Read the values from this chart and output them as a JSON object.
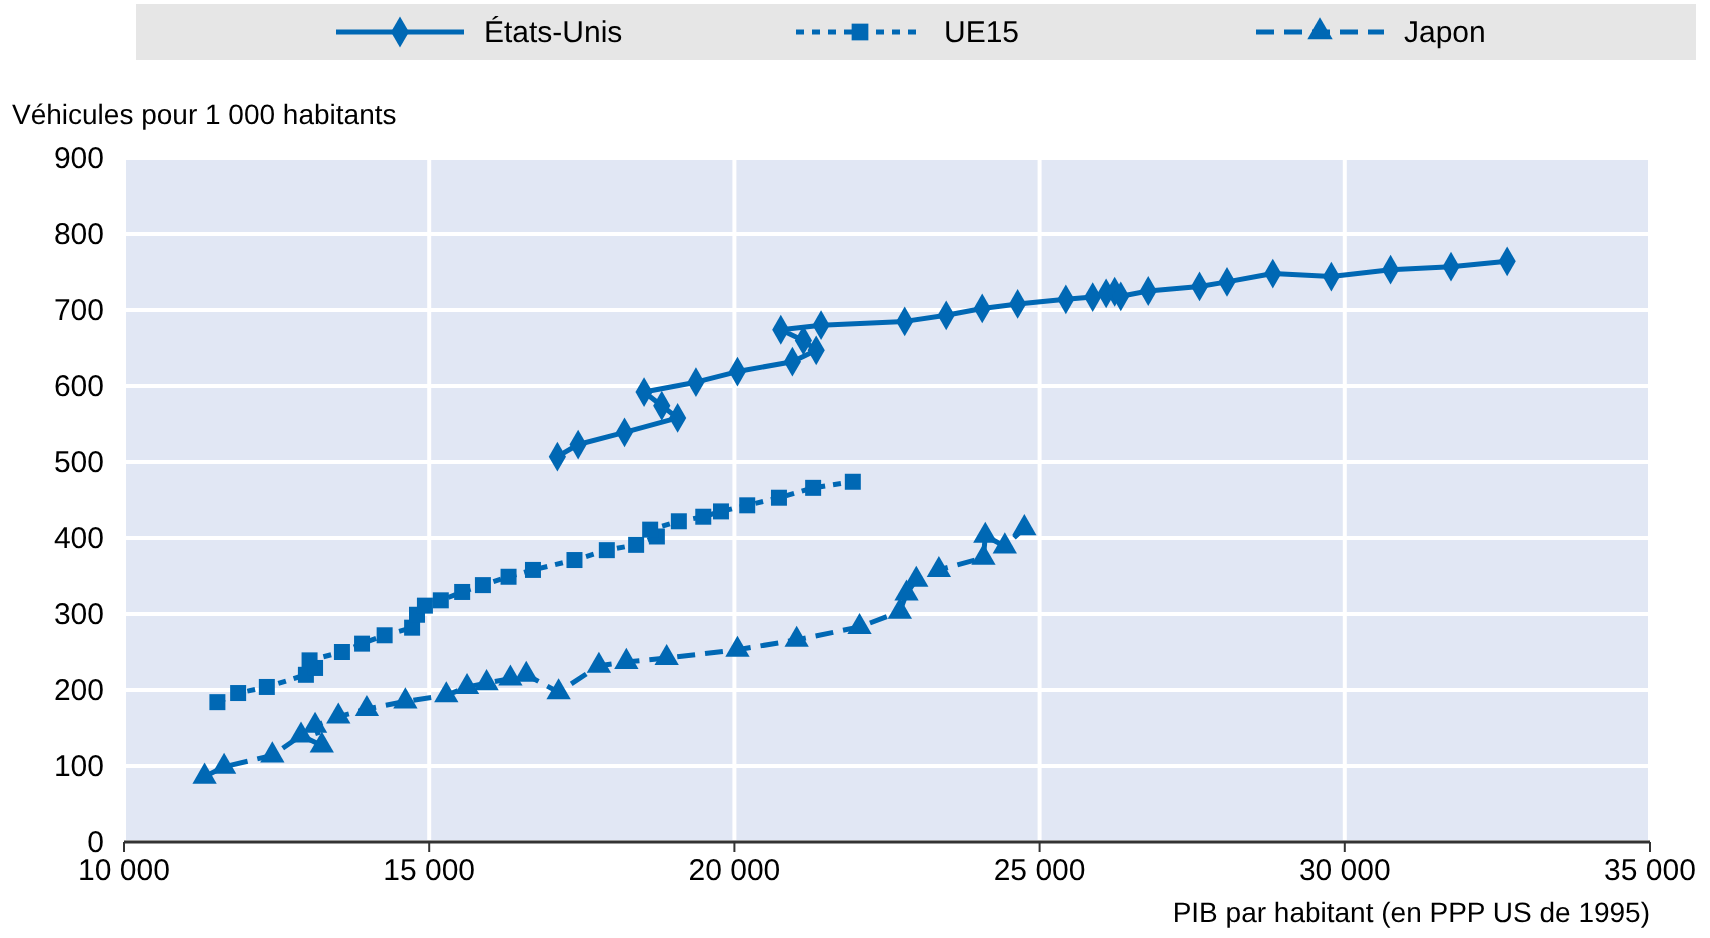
{
  "chart_data": {
    "type": "line",
    "ylabel": "Véhicules pour 1 000 habitants",
    "xlabel": "PIB par habitant (en PPP US de 1995)",
    "xlim": [
      10000,
      35000
    ],
    "xticks": [
      {
        "value": 10000,
        "label": "10 000"
      },
      {
        "value": 15000,
        "label": "15 000"
      },
      {
        "value": 20000,
        "label": "20 000"
      },
      {
        "value": 25000,
        "label": "25 000"
      },
      {
        "value": 30000,
        "label": "30 000"
      },
      {
        "value": 35000,
        "label": "35 000"
      }
    ],
    "ylim": [
      0,
      900
    ],
    "yticks": [
      0,
      100,
      200,
      300,
      400,
      500,
      600,
      700,
      800,
      900
    ],
    "grid": true,
    "legend": "top",
    "series": [
      {
        "name": "États-Unis",
        "color": "#0068b4",
        "marker": "diamond",
        "line_style": "solid",
        "x": [
          17100,
          17440,
          18200,
          19070,
          18810,
          18520,
          19370,
          20050,
          20950,
          21340,
          21130,
          20760,
          21420,
          22790,
          23470,
          24060,
          24640,
          25430,
          25870,
          26090,
          26230,
          26330,
          26780,
          27620,
          28070,
          28820,
          29780,
          30750,
          31740,
          32660
        ],
        "values": [
          507,
          523,
          539,
          558,
          574,
          592,
          605,
          619,
          632,
          647,
          660,
          674,
          680,
          685,
          693,
          702,
          708,
          714,
          717,
          722,
          724,
          718,
          725,
          731,
          737,
          748,
          744,
          753,
          757,
          764
        ]
      },
      {
        "name": "UE15",
        "color": "#0068b4",
        "marker": "square",
        "line_style": "dotted",
        "x": [
          11530,
          11870,
          12340,
          12980,
          13130,
          13040,
          13570,
          13900,
          14270,
          14720,
          14800,
          14930,
          15190,
          15540,
          15880,
          16300,
          16700,
          17380,
          17910,
          18390,
          18730,
          18620,
          19090,
          19490,
          19780,
          20210,
          20730,
          21290,
          21940
        ],
        "values": [
          184,
          196,
          204,
          220,
          229,
          239,
          250,
          261,
          272,
          282,
          299,
          311,
          318,
          329,
          338,
          349,
          358,
          371,
          384,
          391,
          402,
          411,
          422,
          428,
          435,
          443,
          453,
          466,
          474
        ]
      },
      {
        "name": "Japon",
        "color": "#0068b4",
        "marker": "triangle",
        "line_style": "dashed",
        "x": [
          11320,
          11640,
          12430,
          12900,
          13240,
          13130,
          13510,
          13980,
          14610,
          15280,
          15620,
          15940,
          16330,
          16590,
          17120,
          17780,
          18230,
          18890,
          20050,
          21020,
          22050,
          22710,
          22820,
          22980,
          23350,
          24080,
          24110,
          24430,
          24750
        ],
        "values": [
          86,
          99,
          114,
          140,
          127,
          153,
          165,
          175,
          185,
          193,
          204,
          209,
          215,
          220,
          197,
          232,
          237,
          242,
          253,
          266,
          283,
          303,
          327,
          345,
          358,
          374,
          403,
          389,
          413
        ]
      }
    ]
  }
}
